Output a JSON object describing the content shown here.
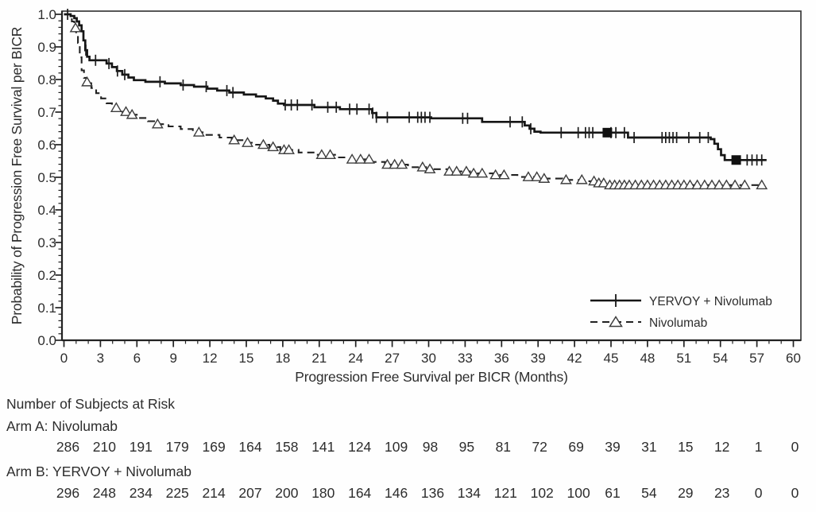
{
  "chart_data": {
    "type": "line",
    "subtype": "kaplan-meier-step",
    "title": "",
    "xlabel": "Progression Free Survival per BICR (Months)",
    "ylabel": "Probability of Progression Free Survival per BICR",
    "xlim": [
      0,
      60
    ],
    "ylim": [
      0.0,
      1.0
    ],
    "xticks": [
      0,
      3,
      6,
      9,
      12,
      15,
      18,
      21,
      24,
      27,
      30,
      33,
      36,
      39,
      42,
      45,
      48,
      51,
      54,
      57,
      60
    ],
    "ytick_labels": [
      "0.0",
      "0.1",
      "0.2",
      "0.3",
      "0.4",
      "0.5",
      "0.6",
      "0.7",
      "0.8",
      "0.9",
      "1.0"
    ],
    "grid": false,
    "legend_position": "lower-right",
    "series": [
      {
        "name": "YERVOY + Nivolumab",
        "line_style": "solid",
        "censor_marker": "plus",
        "color": "#161616",
        "steps": [
          [
            0,
            1.0
          ],
          [
            0.55,
            0.995
          ],
          [
            0.85,
            0.988
          ],
          [
            1.05,
            0.978
          ],
          [
            1.25,
            0.966
          ],
          [
            1.45,
            0.948
          ],
          [
            1.6,
            0.92
          ],
          [
            1.75,
            0.89
          ],
          [
            1.9,
            0.87
          ],
          [
            2.1,
            0.859
          ],
          [
            3.5,
            0.849
          ],
          [
            3.95,
            0.838
          ],
          [
            4.35,
            0.826
          ],
          [
            4.8,
            0.815
          ],
          [
            5.3,
            0.806
          ],
          [
            5.75,
            0.798
          ],
          [
            6.7,
            0.793
          ],
          [
            8.3,
            0.788
          ],
          [
            9.6,
            0.783
          ],
          [
            10.7,
            0.778
          ],
          [
            11.8,
            0.772
          ],
          [
            12.6,
            0.766
          ],
          [
            13.6,
            0.76
          ],
          [
            14.8,
            0.754
          ],
          [
            15.8,
            0.748
          ],
          [
            16.6,
            0.742
          ],
          [
            17.2,
            0.735
          ],
          [
            17.6,
            0.726
          ],
          [
            18.1,
            0.722
          ],
          [
            20.6,
            0.715
          ],
          [
            22.7,
            0.709
          ],
          [
            25.35,
            0.697
          ],
          [
            25.7,
            0.684
          ],
          [
            30.2,
            0.681
          ],
          [
            34.4,
            0.67
          ],
          [
            37.9,
            0.659
          ],
          [
            38.3,
            0.649
          ],
          [
            38.7,
            0.64
          ],
          [
            39.2,
            0.637
          ],
          [
            46.4,
            0.622
          ],
          [
            53.2,
            0.617
          ],
          [
            53.5,
            0.603
          ],
          [
            53.8,
            0.586
          ],
          [
            54.05,
            0.568
          ],
          [
            54.35,
            0.553
          ],
          [
            57.8,
            0.553
          ]
        ],
        "censor_months": [
          0.3,
          1.8,
          2.6,
          3.7,
          4.4,
          5.0,
          7.9,
          9.8,
          11.7,
          13.4,
          13.9,
          18.2,
          18.7,
          19.2,
          20.4,
          21.7,
          22.4,
          23.5,
          24.1,
          25.1,
          25.4,
          25.7,
          26.6,
          28.4,
          29.1,
          29.4,
          29.7,
          30.1,
          32.8,
          33.2,
          36.7,
          37.7,
          38.4,
          40.9,
          42.3,
          42.9,
          43.2,
          43.5,
          45.0,
          45.4,
          46.1,
          46.9,
          49.2,
          49.5,
          49.8,
          50.1,
          50.4,
          51.4,
          52.3,
          53.0,
          56.2,
          56.6,
          57.0,
          57.4
        ],
        "heavy_censor_months": [
          44.7,
          55.3
        ]
      },
      {
        "name": "Nivolumab",
        "line_style": "dashed",
        "censor_marker": "open-triangle",
        "color": "#222222",
        "steps": [
          [
            0,
            1.0
          ],
          [
            0.65,
            0.978
          ],
          [
            0.85,
            0.958
          ],
          [
            1.0,
            0.938
          ],
          [
            1.15,
            0.912
          ],
          [
            1.3,
            0.868
          ],
          [
            1.45,
            0.828
          ],
          [
            1.65,
            0.805
          ],
          [
            1.85,
            0.792
          ],
          [
            2.25,
            0.774
          ],
          [
            2.65,
            0.758
          ],
          [
            3.05,
            0.742
          ],
          [
            3.5,
            0.727
          ],
          [
            3.95,
            0.713
          ],
          [
            4.4,
            0.701
          ],
          [
            5.4,
            0.692
          ],
          [
            6.15,
            0.682
          ],
          [
            6.9,
            0.672
          ],
          [
            7.6,
            0.663
          ],
          [
            8.6,
            0.656
          ],
          [
            9.6,
            0.648
          ],
          [
            10.6,
            0.638
          ],
          [
            11.6,
            0.63
          ],
          [
            12.8,
            0.622
          ],
          [
            13.8,
            0.614
          ],
          [
            14.8,
            0.606
          ],
          [
            15.8,
            0.6
          ],
          [
            16.9,
            0.593
          ],
          [
            17.8,
            0.584
          ],
          [
            19.3,
            0.576
          ],
          [
            20.8,
            0.569
          ],
          [
            22.3,
            0.561
          ],
          [
            23.6,
            0.555
          ],
          [
            25.3,
            0.547
          ],
          [
            26.4,
            0.539
          ],
          [
            28.3,
            0.531
          ],
          [
            29.8,
            0.525
          ],
          [
            31.7,
            0.518
          ],
          [
            33.4,
            0.512
          ],
          [
            35.3,
            0.507
          ],
          [
            37.3,
            0.501
          ],
          [
            39.3,
            0.496
          ],
          [
            41.0,
            0.492
          ],
          [
            42.9,
            0.488
          ],
          [
            43.8,
            0.482
          ],
          [
            44.6,
            0.476
          ],
          [
            57.6,
            0.476
          ]
        ],
        "censor_months": [
          0.95,
          1.9,
          4.3,
          5.1,
          5.6,
          7.7,
          11.1,
          14.0,
          15.1,
          16.4,
          17.2,
          18.1,
          18.5,
          21.2,
          21.9,
          23.7,
          24.4,
          25.1,
          26.6,
          27.2,
          27.8,
          29.5,
          30.1,
          31.7,
          32.3,
          33.1,
          33.7,
          34.4,
          35.5,
          36.2,
          38.2,
          38.9,
          39.5,
          41.3,
          42.6,
          43.6,
          44.0,
          44.4,
          44.9,
          45.3,
          45.7,
          46.1,
          46.5,
          47.0,
          47.5,
          48.0,
          48.5,
          49.0,
          49.5,
          50.0,
          50.5,
          51.0,
          51.5,
          52.1,
          52.7,
          53.3,
          53.9,
          54.5,
          55.2,
          56.0,
          57.4
        ],
        "heavy_censor_months": []
      }
    ]
  },
  "risk_table": {
    "heading": "Number of Subjects at Risk",
    "months": [
      0,
      3,
      6,
      9,
      12,
      15,
      18,
      21,
      24,
      27,
      30,
      33,
      36,
      39,
      42,
      45,
      48,
      51,
      54,
      57,
      60
    ],
    "rows": [
      {
        "label": "Arm A: Nivolumab",
        "values": [
          286,
          210,
          191,
          179,
          169,
          164,
          158,
          141,
          124,
          109,
          98,
          95,
          81,
          72,
          69,
          39,
          31,
          15,
          12,
          1,
          0
        ]
      },
      {
        "label": "Arm B: YERVOY + Nivolumab",
        "values": [
          296,
          248,
          234,
          225,
          214,
          207,
          200,
          180,
          164,
          146,
          136,
          134,
          121,
          102,
          100,
          61,
          54,
          29,
          23,
          0,
          0
        ]
      }
    ]
  },
  "colors": {
    "text": "#2d2d2d",
    "axis": "#3a3a3a",
    "background": "#fefefe"
  }
}
